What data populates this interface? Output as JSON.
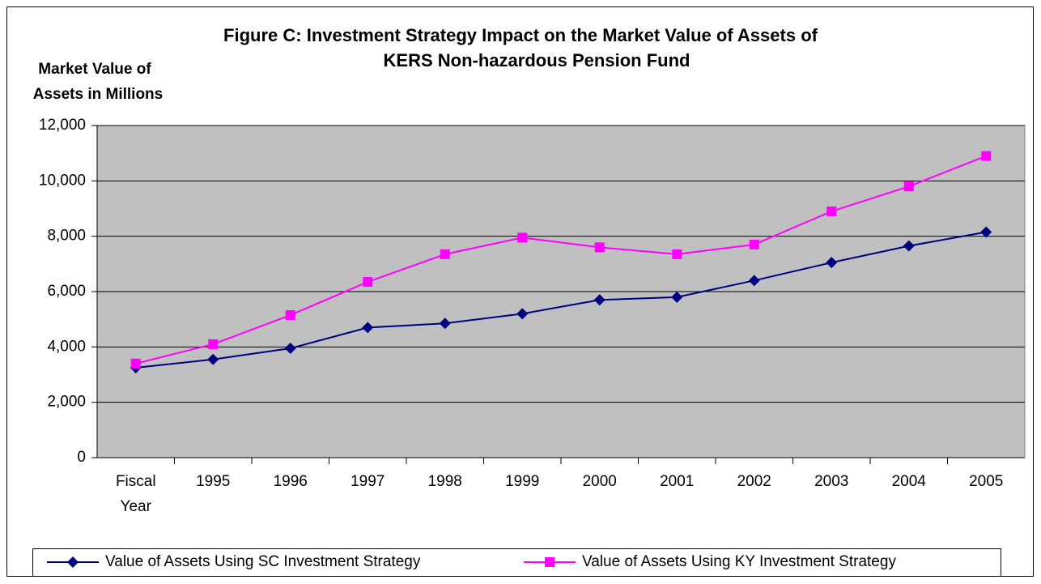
{
  "chart_data": {
    "type": "line",
    "title": [
      "Figure C: Investment Strategy Impact on the Market Value of Assets of",
      "KERS Non-hazardous Pension Fund"
    ],
    "y_label": [
      "Market Value of",
      "Assets in Millions"
    ],
    "categories": [
      "Fiscal Year",
      "1995",
      "1996",
      "1997",
      "1998",
      "1999",
      "2000",
      "2001",
      "2002",
      "2003",
      "2004",
      "2005"
    ],
    "series": [
      {
        "name": "Value of Assets Using SC Investment Strategy",
        "color": "#000080",
        "marker": "diamond",
        "values": [
          3250,
          3550,
          3950,
          4700,
          4850,
          5200,
          5700,
          5800,
          6400,
          7050,
          7650,
          8150
        ]
      },
      {
        "name": "Value of Assets Using KY Investment Strategy",
        "color": "#ff00ff",
        "marker": "square",
        "values": [
          3400,
          4100,
          5150,
          6350,
          7350,
          7950,
          7600,
          7350,
          7700,
          8900,
          9800,
          10900
        ]
      }
    ],
    "ylim": [
      0,
      12000
    ],
    "yticks": [
      0,
      {
        "value": 2000,
        "label": "2,000"
      },
      {
        "value": 4000,
        "label": "4,000"
      },
      {
        "value": 6000,
        "label": "6,000"
      },
      {
        "value": 8000,
        "label": "8,000"
      },
      {
        "value": 10000,
        "label": "10,000"
      },
      {
        "value": 12000,
        "label": "12,000"
      }
    ],
    "grid": true,
    "legend": "bottom"
  }
}
